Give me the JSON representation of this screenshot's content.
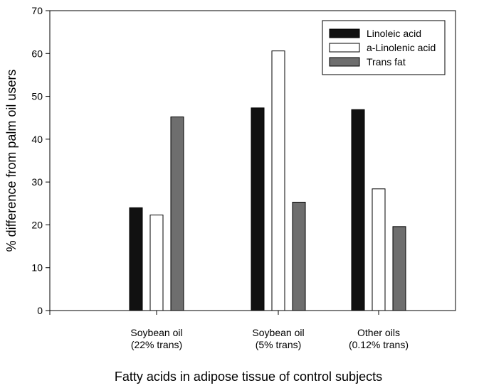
{
  "chart_data": {
    "type": "bar",
    "categories": [
      [
        "Soybean oil",
        "(22% trans)"
      ],
      [
        "Soybean oil",
        "(5% trans)"
      ],
      [
        "Other oils",
        "(0.12% trans)"
      ]
    ],
    "series": [
      {
        "name": "Linoleic acid",
        "color": "#111111",
        "values": [
          24,
          47.3,
          46.9
        ]
      },
      {
        "name": "a-Linolenic acid",
        "color": "#ffffff",
        "values": [
          22.3,
          60.6,
          28.4
        ]
      },
      {
        "name": "Trans fat",
        "color": "#6e6e6e",
        "values": [
          45.2,
          25.3,
          19.6
        ]
      }
    ],
    "xlabel": "Fatty acids in adipose tissue of control subjects",
    "ylabel": "% difference from palm oil users",
    "ylim": [
      0,
      70
    ],
    "yticks": [
      0,
      10,
      20,
      30,
      40,
      50,
      60,
      70
    ],
    "grid": false,
    "legend_position": "top-right"
  }
}
